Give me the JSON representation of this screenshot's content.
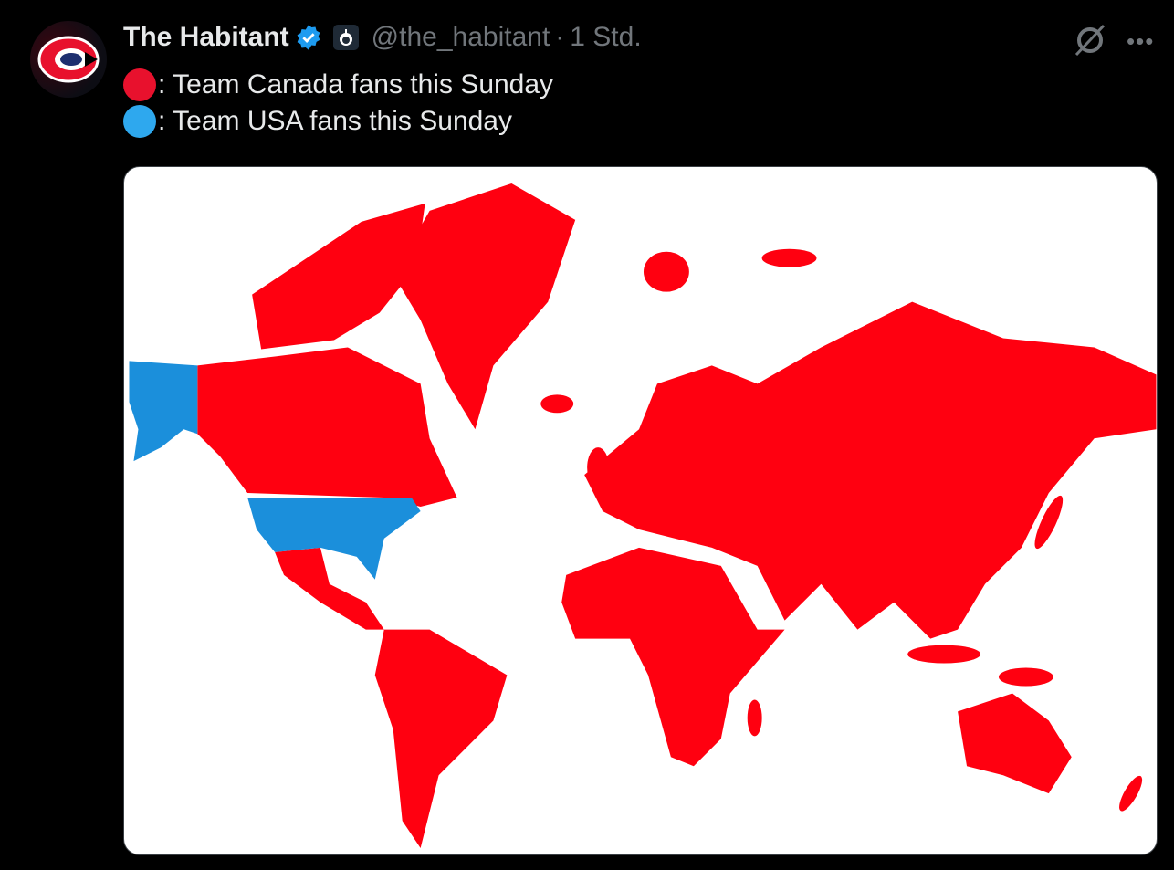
{
  "post": {
    "author_name": "The Habitant",
    "handle": "@the_habitant",
    "separator": "·",
    "time": "1 Std.",
    "verified": true,
    "icons": {
      "verified": "verified-badge-icon",
      "affiliate": "affiliate-badge-icon",
      "grok": "grok-icon",
      "more": "more-icon"
    },
    "more_label": "•••",
    "text_lines": [
      {
        "marker_color": "#e8112d",
        "text": ": Team Canada fans this Sunday"
      },
      {
        "marker_color": "#1da1f2",
        "text": ": Team USA fans this Sunday"
      }
    ]
  },
  "map": {
    "colors": {
      "canada_fans": "#ff0010",
      "usa_fans": "#1b8fdb",
      "background": "#ffffff"
    },
    "blue_regions": [
      "Alaska",
      "Contiguous United States"
    ]
  }
}
